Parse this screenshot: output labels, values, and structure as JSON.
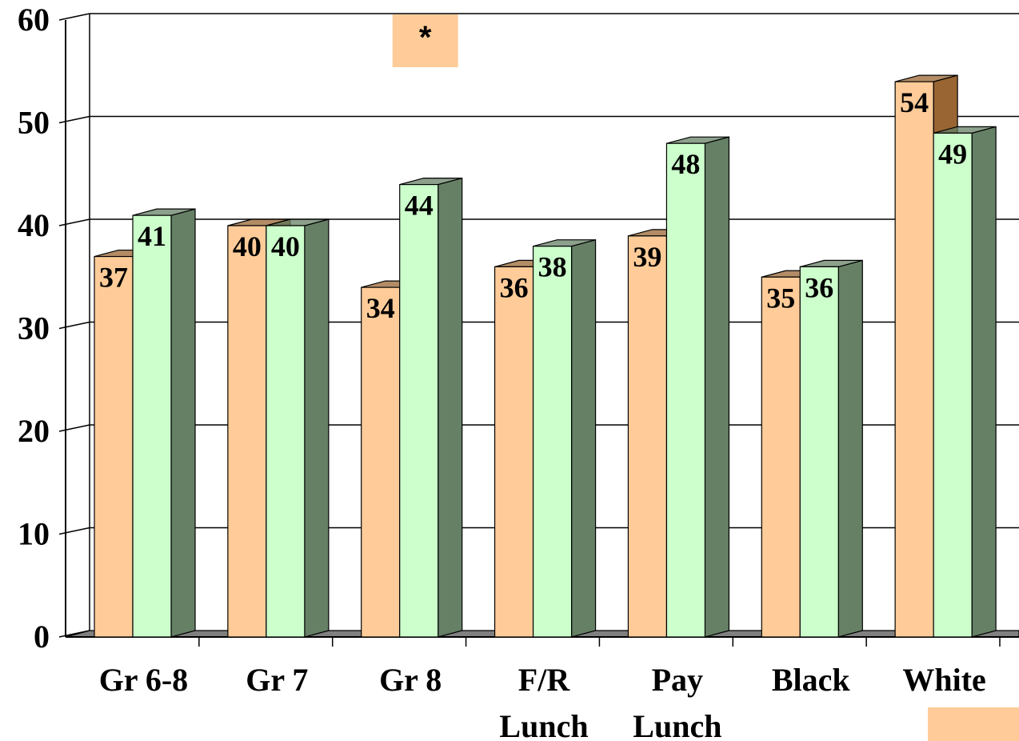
{
  "chart_data": {
    "type": "bar",
    "title": "",
    "xlabel": "",
    "ylabel": "",
    "ylim": [
      0,
      60
    ],
    "yticks": [
      0,
      10,
      20,
      30,
      40,
      50,
      60
    ],
    "grid": true,
    "three_d": true,
    "categories": [
      [
        "Gr 6-8"
      ],
      [
        "Gr 7"
      ],
      [
        "Gr 8"
      ],
      [
        "F/R",
        "Lunch"
      ],
      [
        "Pay",
        "Lunch"
      ],
      [
        "Black"
      ],
      [
        "White"
      ]
    ],
    "series": [
      {
        "color": "#FFCC99",
        "side_color": "#996633",
        "values": [
          37,
          40,
          34,
          36,
          39,
          35,
          54
        ]
      },
      {
        "color": "#CCFFCC",
        "side_color": "#668066",
        "values": [
          41,
          40,
          44,
          38,
          48,
          36,
          49
        ]
      }
    ],
    "annotations": [
      {
        "text": "*",
        "category_index": 2,
        "box_color": "#FFCC99"
      }
    ],
    "legend_swatch": {
      "placement": "bottom-right",
      "color": "#FFCC99"
    }
  }
}
